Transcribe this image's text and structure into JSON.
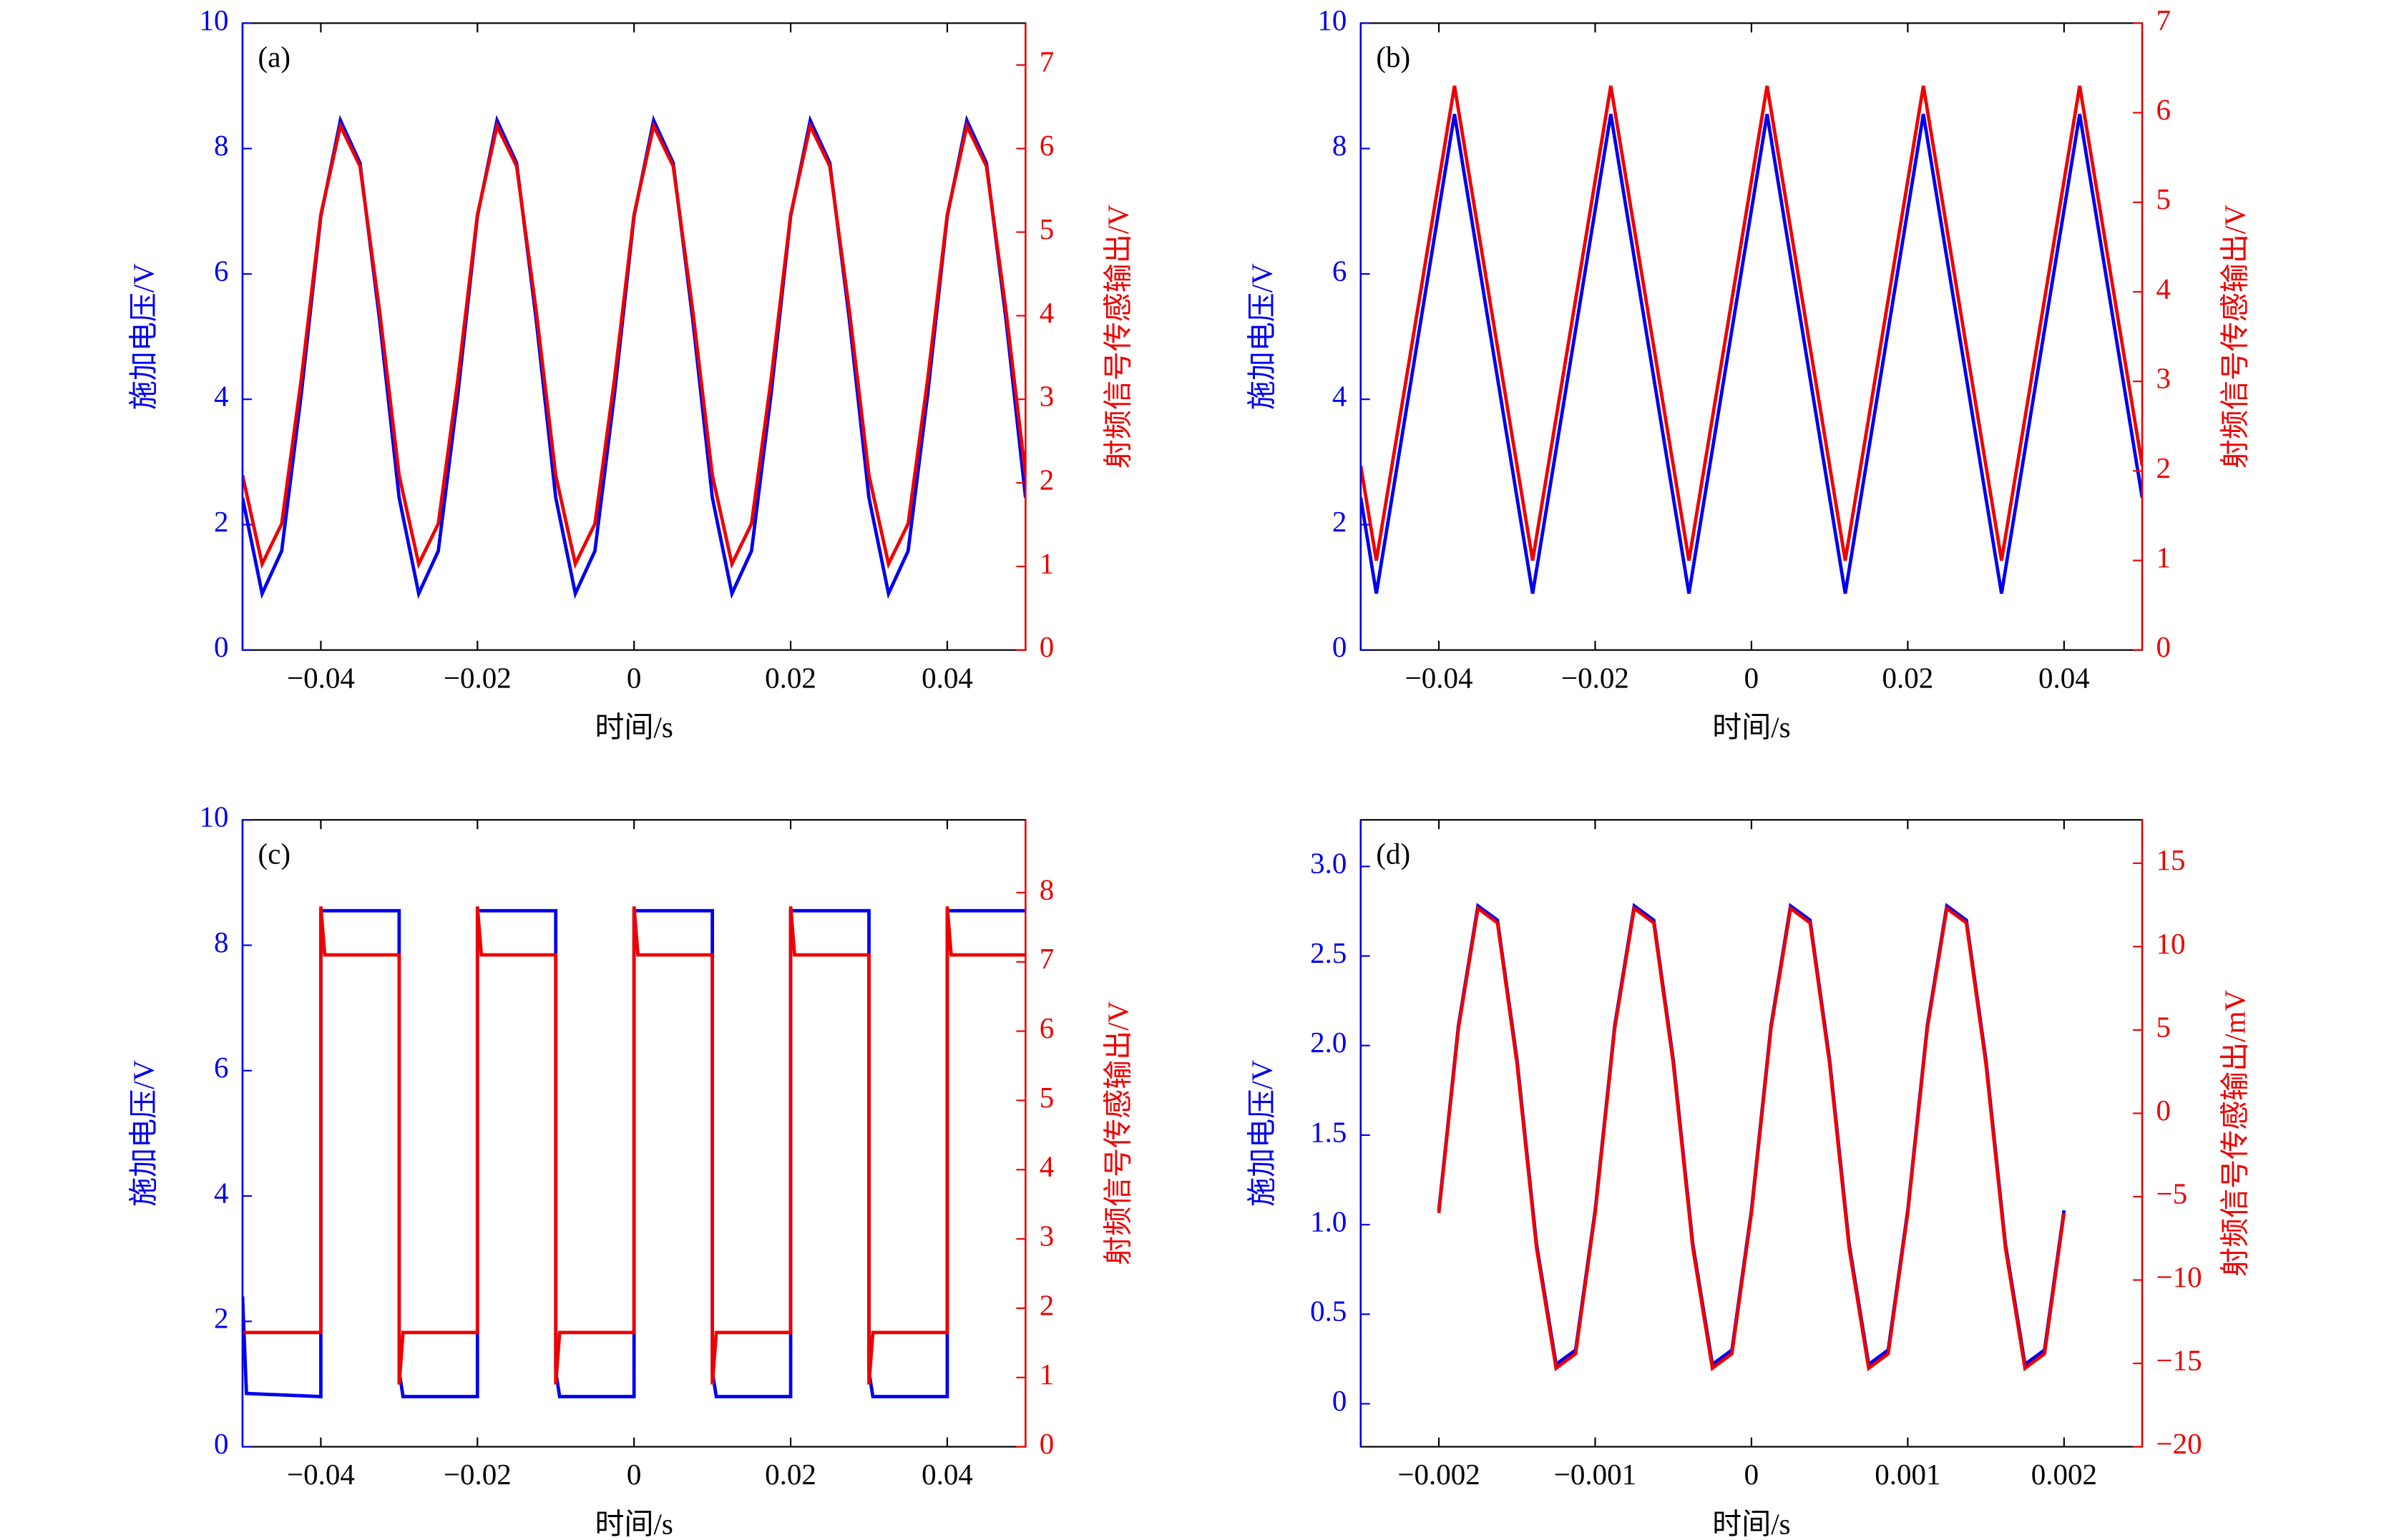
{
  "chart_data": [
    {
      "type": "line",
      "panel_label": "(a)",
      "xlabel": "时间/s",
      "ylabel": "施加电压/V",
      "y2label": "射频信号传感输出/V",
      "xlim": [
        -0.05,
        0.05
      ],
      "xticks": [
        {
          "value": -0.04,
          "label": "−0.04"
        },
        {
          "value": -0.02,
          "label": "−0.02"
        },
        0,
        0.02,
        0.04
      ],
      "ylim": [
        0,
        10
      ],
      "yticks": [
        0,
        2,
        4,
        6,
        8,
        10
      ],
      "y2lim": [
        0,
        7.5
      ],
      "y2ticks": [
        0,
        1,
        2,
        3,
        4,
        5,
        6,
        7
      ],
      "series": [
        {
          "color": "#0000ee",
          "axis": "y",
          "x": [
            -0.05,
            -0.0475,
            -0.045,
            -0.0425,
            -0.04,
            -0.0375,
            -0.035,
            -0.0325,
            -0.03,
            -0.0275,
            -0.025,
            -0.0225,
            -0.02,
            -0.0175,
            -0.015,
            -0.0125,
            -0.01,
            -0.0075,
            -0.005,
            -0.0025,
            0,
            0.0025,
            0.005,
            0.0075,
            0.01,
            0.0125,
            0.015,
            0.0175,
            0.02,
            0.0225,
            0.025,
            0.0275,
            0.03,
            0.0325,
            0.035,
            0.0375,
            0.04,
            0.0425,
            0.045,
            0.0475,
            0.05
          ],
          "values": [
            2.43,
            0.9,
            1.58,
            4.08,
            6.92,
            8.45,
            7.77,
            5.27,
            2.43,
            0.9,
            1.58,
            4.08,
            6.92,
            8.45,
            7.77,
            5.27,
            2.43,
            0.9,
            1.58,
            4.08,
            6.92,
            8.45,
            7.77,
            5.27,
            2.43,
            0.9,
            1.58,
            4.08,
            6.92,
            8.45,
            7.77,
            5.27,
            2.43,
            0.9,
            1.58,
            4.08,
            6.92,
            8.45,
            7.77,
            5.27,
            2.43
          ]
        },
        {
          "color": "#ee0000",
          "axis": "y2",
          "x": [
            -0.05,
            -0.0475,
            -0.045,
            -0.0425,
            -0.04,
            -0.0375,
            -0.035,
            -0.0325,
            -0.03,
            -0.0275,
            -0.025,
            -0.0225,
            -0.02,
            -0.0175,
            -0.015,
            -0.0125,
            -0.01,
            -0.0075,
            -0.005,
            -0.0025,
            0,
            0.0025,
            0.005,
            0.0075,
            0.01,
            0.0125,
            0.015,
            0.0175,
            0.02,
            0.0225,
            0.025,
            0.0275,
            0.03,
            0.0325,
            0.035,
            0.0375,
            0.04,
            0.0425,
            0.045,
            0.0475,
            0.05
          ],
          "values": [
            2.09,
            1.03,
            1.51,
            3.24,
            5.21,
            6.27,
            5.79,
            4.06,
            2.09,
            1.03,
            1.51,
            3.24,
            5.21,
            6.27,
            5.79,
            4.06,
            2.09,
            1.03,
            1.51,
            3.24,
            5.21,
            6.27,
            5.79,
            4.06,
            2.09,
            1.03,
            1.51,
            3.24,
            5.21,
            6.27,
            5.79,
            4.06,
            2.09,
            1.03,
            1.51,
            3.24,
            5.21,
            6.27,
            5.79,
            4.06,
            2.09
          ]
        }
      ]
    },
    {
      "type": "line",
      "panel_label": "(b)",
      "xlabel": "时间/s",
      "ylabel": "施加电压/V",
      "y2label": "射频信号传感输出/V",
      "xlim": [
        -0.05,
        0.05
      ],
      "xticks": [
        {
          "value": -0.04,
          "label": "−0.04"
        },
        {
          "value": -0.02,
          "label": "−0.02"
        },
        0,
        0.02,
        0.04
      ],
      "ylim": [
        0,
        10
      ],
      "yticks": [
        0,
        2,
        4,
        6,
        8,
        10
      ],
      "y2lim": [
        0,
        7
      ],
      "y2ticks": [
        0,
        1,
        2,
        3,
        4,
        5,
        6,
        7
      ],
      "series": [
        {
          "color": "#0000ee",
          "axis": "y",
          "x": [
            -0.05,
            -0.048,
            -0.038,
            -0.028,
            -0.018,
            -0.008,
            0.002,
            0.012,
            0.022,
            0.032,
            0.042,
            0.05
          ],
          "values": [
            2.43,
            0.9,
            8.55,
            0.9,
            8.55,
            0.9,
            8.55,
            0.9,
            8.55,
            0.9,
            8.55,
            2.43
          ]
        },
        {
          "color": "#ee0000",
          "axis": "y2",
          "x": [
            -0.05,
            -0.048,
            -0.038,
            -0.028,
            -0.018,
            -0.008,
            0.002,
            0.012,
            0.022,
            0.032,
            0.042,
            0.05
          ],
          "values": [
            2.06,
            1.0,
            6.3,
            1.0,
            6.3,
            1.0,
            6.3,
            1.0,
            6.3,
            1.0,
            6.3,
            2.06
          ]
        }
      ]
    },
    {
      "type": "line",
      "panel_label": "(c)",
      "xlabel": "时间/s",
      "ylabel": "施加电压/V",
      "y2label": "射频信号传感输出/V",
      "xlim": [
        -0.05,
        0.05
      ],
      "xticks": [
        {
          "value": -0.04,
          "label": "−0.04"
        },
        {
          "value": -0.02,
          "label": "−0.02"
        },
        0,
        0.02,
        0.04
      ],
      "ylim": [
        0,
        10
      ],
      "yticks": [
        0,
        2,
        4,
        6,
        8,
        10
      ],
      "y2lim": [
        0,
        9.05
      ],
      "y2ticks": [
        0,
        1,
        2,
        3,
        4,
        5,
        6,
        7,
        8
      ],
      "series": [
        {
          "color": "#0000ee",
          "axis": "y",
          "x": [
            -0.05,
            -0.0495,
            -0.04,
            -0.04,
            -0.03,
            -0.03,
            -0.0295,
            -0.02,
            -0.02,
            -0.01,
            -0.01,
            -0.0095,
            0,
            0,
            0.01,
            0.01,
            0.0105,
            0.02,
            0.02,
            0.03,
            0.03,
            0.0305,
            0.04,
            0.04,
            0.05
          ],
          "values": [
            2.4,
            0.85,
            0.8,
            8.55,
            8.55,
            1.2,
            0.8,
            0.8,
            8.55,
            8.55,
            1.2,
            0.8,
            0.8,
            8.55,
            8.55,
            1.2,
            0.8,
            0.8,
            8.55,
            8.55,
            1.2,
            0.8,
            0.8,
            8.55,
            8.55
          ]
        },
        {
          "color": "#ee0000",
          "axis": "y2",
          "x": [
            -0.05,
            -0.04,
            -0.04,
            -0.0395,
            -0.03,
            -0.03,
            -0.0295,
            -0.02,
            -0.02,
            -0.0195,
            -0.01,
            -0.01,
            -0.0095,
            0,
            0,
            0.0005,
            0.01,
            0.01,
            0.0105,
            0.02,
            0.02,
            0.0205,
            0.03,
            0.03,
            0.0305,
            0.04,
            0.04,
            0.0405,
            0.05
          ],
          "values": [
            1.65,
            1.65,
            7.8,
            7.1,
            7.1,
            0.9,
            1.65,
            1.65,
            7.8,
            7.1,
            7.1,
            0.9,
            1.65,
            1.65,
            7.8,
            7.1,
            7.1,
            0.9,
            1.65,
            1.65,
            7.8,
            7.1,
            7.1,
            0.9,
            1.65,
            1.65,
            7.8,
            7.1,
            7.1
          ]
        }
      ]
    },
    {
      "type": "line",
      "panel_label": "(d)",
      "xlabel": "时间/s",
      "ylabel": "施加电压/V",
      "y2label": "射频信号传感输出/mV",
      "xlim": [
        -0.0025,
        0.0025
      ],
      "xticks": [
        {
          "value": -0.002,
          "label": "−0.002"
        },
        {
          "value": -0.001,
          "label": "−0.001"
        },
        0,
        0.001,
        0.002
      ],
      "ylim": [
        -0.24,
        3.26
      ],
      "yticks": [
        0,
        0.5,
        {
          "value": 1,
          "label": "1.0"
        },
        1.5,
        {
          "value": 2,
          "label": "2.0"
        },
        2.5,
        {
          "value": 3,
          "label": "3.0"
        }
      ],
      "y2lim": [
        -20,
        17.6
      ],
      "y2ticks": [
        {
          "value": -20,
          "label": "−20"
        },
        {
          "value": -15,
          "label": "−15"
        },
        {
          "value": -10,
          "label": "−10"
        },
        {
          "value": -5,
          "label": "−5"
        },
        0,
        5,
        10,
        15
      ],
      "series": [
        {
          "color": "#0000ee",
          "axis": "y",
          "x": [
            -0.002,
            -0.001875,
            -0.00175,
            -0.001625,
            -0.0015,
            -0.001375,
            -0.00125,
            -0.001125,
            -0.001,
            -0.000875,
            -0.00075,
            -0.000625,
            -0.0005,
            -0.000375,
            -0.00025,
            -0.000125,
            0,
            0.000125,
            0.00025,
            0.000375,
            0.0005,
            0.000625,
            0.00075,
            0.000875,
            0.001,
            0.001125,
            0.00125,
            0.001375,
            0.0015,
            0.001625,
            0.00175,
            0.001875,
            0.002
          ],
          "values": [
            1.08,
            2.11,
            2.78,
            2.7,
            1.92,
            0.89,
            0.22,
            0.3,
            1.08,
            2.11,
            2.78,
            2.7,
            1.92,
            0.89,
            0.22,
            0.3,
            1.08,
            2.11,
            2.78,
            2.7,
            1.92,
            0.89,
            0.22,
            0.3,
            1.08,
            2.11,
            2.78,
            2.7,
            1.92,
            0.89,
            0.22,
            0.3,
            1.08
          ]
        },
        {
          "color": "#ee0000",
          "axis": "y2",
          "x": [
            -0.002,
            -0.001875,
            -0.00175,
            -0.001625,
            -0.0015,
            -0.001375,
            -0.00125,
            -0.001125,
            -0.001,
            -0.000875,
            -0.00075,
            -0.000625,
            -0.0005,
            -0.000375,
            -0.00025,
            -0.000125,
            0,
            0.000125,
            0.00025,
            0.000375,
            0.0005,
            0.000625,
            0.00075,
            0.000875,
            0.001,
            0.001125,
            0.00125,
            0.001375,
            0.0015,
            0.001625,
            0.00175,
            0.001875,
            0.002
          ],
          "values": [
            -5.98,
            5.08,
            12.29,
            11.42,
            2.98,
            -8.08,
            -15.29,
            -14.42,
            -5.98,
            5.08,
            12.29,
            11.42,
            2.98,
            -8.08,
            -15.29,
            -14.42,
            -5.98,
            5.08,
            12.29,
            11.42,
            2.98,
            -8.08,
            -15.29,
            -14.42,
            -5.98,
            5.08,
            12.29,
            11.42,
            2.98,
            -8.08,
            -15.29,
            -14.42,
            -5.98
          ]
        }
      ]
    }
  ]
}
